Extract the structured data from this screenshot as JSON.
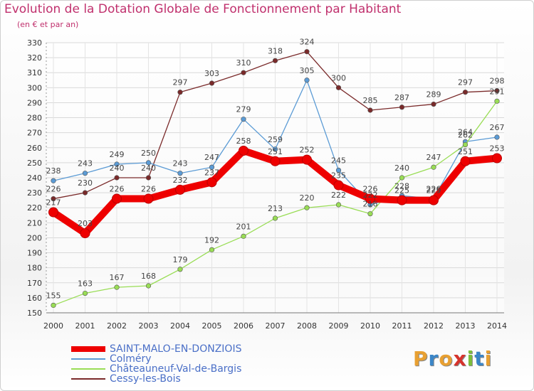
{
  "header": {
    "title": "Evolution de la Dotation Globale de Fonctionnement par Habitant",
    "subtitle": "(en € et par an)"
  },
  "brand": {
    "letters": [
      "P",
      "r",
      "o",
      "x",
      "i",
      "t",
      "i"
    ],
    "colors": [
      "#e8a032",
      "#3b86c8",
      "#e8a032",
      "#d6332c",
      "#7cbf3a",
      "#3b86c8",
      "#e8a032"
    ]
  },
  "chart_data": {
    "type": "line",
    "title": "Evolution de la Dotation Globale de Fonctionnement par Habitant",
    "subtitle": "(en € et par an)",
    "xlabel": "",
    "ylabel": "",
    "x": [
      "2000",
      "2001",
      "2002",
      "2003",
      "2004",
      "2005",
      "2006",
      "2007",
      "2008",
      "2009",
      "2010",
      "2011",
      "2012",
      "2013",
      "2014"
    ],
    "y_ticks": [
      150,
      160,
      170,
      180,
      190,
      200,
      210,
      220,
      230,
      240,
      250,
      260,
      270,
      280,
      290,
      300,
      310,
      320,
      330
    ],
    "ylim": [
      150,
      330
    ],
    "grid": true,
    "legend_position": "bottom-left",
    "series": [
      {
        "name": "SAINT-MALO-EN-DONZIOIS",
        "color": "#ee0000",
        "emphasis": true,
        "values": [
          217,
          203,
          226,
          226,
          232,
          237,
          258,
          251,
          252,
          235,
          226,
          225,
          225,
          251,
          253
        ]
      },
      {
        "name": "Colméry",
        "color": "#5b9bd5",
        "values": [
          238,
          243,
          249,
          250,
          243,
          247,
          279,
          259,
          305,
          245,
          222,
          228,
          226,
          264,
          267
        ]
      },
      {
        "name": "Châteauneuf-Val-de-Bargis",
        "color": "#99dd55",
        "values": [
          155,
          163,
          167,
          168,
          179,
          192,
          201,
          213,
          220,
          222,
          216,
          240,
          247,
          262,
          291
        ]
      },
      {
        "name": "Cessy-les-Bois",
        "color": "#7a2a2a",
        "values": [
          226,
          230,
          240,
          240,
          297,
          303,
          310,
          318,
          324,
          300,
          285,
          287,
          289,
          297,
          298
        ]
      }
    ]
  }
}
